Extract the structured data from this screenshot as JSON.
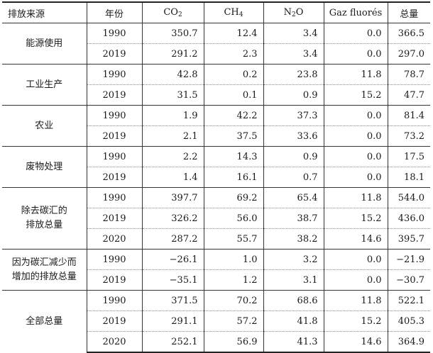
{
  "headers": {
    "source": "排放来源",
    "year": "年份",
    "co2": "CO",
    "co2_sub": "2",
    "ch4": "CH",
    "ch4_sub": "4",
    "n2o_pre": "N",
    "n2o_sub": "2",
    "n2o_post": "O",
    "fgas": "Gaz fluorés",
    "total": "总量"
  },
  "groups": [
    {
      "source": "能源使用",
      "rows": [
        {
          "year": "1990",
          "co2": "350.7",
          "ch4": "12.4",
          "n2o": "3.4",
          "fgas": "0.0",
          "total": "366.5"
        },
        {
          "year": "2019",
          "co2": "291.2",
          "ch4": "2.3",
          "n2o": "3.4",
          "fgas": "0.0",
          "total": "297.0"
        }
      ]
    },
    {
      "source": "工业生产",
      "rows": [
        {
          "year": "1990",
          "co2": "42.8",
          "ch4": "0.2",
          "n2o": "23.8",
          "fgas": "11.8",
          "total": "78.7"
        },
        {
          "year": "2019",
          "co2": "31.5",
          "ch4": "0.1",
          "n2o": "0.9",
          "fgas": "15.2",
          "total": "47.7"
        }
      ]
    },
    {
      "source": "农业",
      "rows": [
        {
          "year": "1990",
          "co2": "1.9",
          "ch4": "42.2",
          "n2o": "37.3",
          "fgas": "0.0",
          "total": "81.4"
        },
        {
          "year": "2019",
          "co2": "2.1",
          "ch4": "37.5",
          "n2o": "33.6",
          "fgas": "0.0",
          "total": "73.2"
        }
      ]
    },
    {
      "source": "废物处理",
      "rows": [
        {
          "year": "1990",
          "co2": "2.2",
          "ch4": "14.3",
          "n2o": "0.9",
          "fgas": "0.0",
          "total": "17.5"
        },
        {
          "year": "2019",
          "co2": "1.4",
          "ch4": "16.1",
          "n2o": "0.7",
          "fgas": "0.0",
          "total": "18.1"
        }
      ]
    },
    {
      "source": "除去碳汇的排放总量",
      "source_lines": [
        "除去碳汇的",
        "排放总量"
      ],
      "rows": [
        {
          "year": "1990",
          "co2": "397.7",
          "ch4": "69.2",
          "n2o": "65.4",
          "fgas": "11.8",
          "total": "544.0"
        },
        {
          "year": "2019",
          "co2": "326.2",
          "ch4": "56.0",
          "n2o": "38.7",
          "fgas": "15.2",
          "total": "436.0"
        },
        {
          "year": "2020",
          "co2": "287.2",
          "ch4": "55.7",
          "n2o": "38.2",
          "fgas": "14.6",
          "total": "395.7"
        }
      ]
    },
    {
      "source": "因为碳汇减少而增加的排放总量",
      "source_lines": [
        "因为碳汇减少而",
        "增加的排放总量"
      ],
      "rows": [
        {
          "year": "1990",
          "co2": "−26.1",
          "ch4": "1.0",
          "n2o": "3.2",
          "fgas": "0.0",
          "total": "−21.9"
        },
        {
          "year": "2019",
          "co2": "−35.1",
          "ch4": "1.2",
          "n2o": "3.1",
          "fgas": "0.0",
          "total": "−30.7"
        }
      ]
    },
    {
      "source": "全部总量",
      "rows": [
        {
          "year": "1990",
          "co2": "371.5",
          "ch4": "70.2",
          "n2o": "68.6",
          "fgas": "11.8",
          "total": "522.1"
        },
        {
          "year": "2019",
          "co2": "291.1",
          "ch4": "57.2",
          "n2o": "41.8",
          "fgas": "15.2",
          "total": "405.3"
        },
        {
          "year": "2020",
          "co2": "252.1",
          "ch4": "56.9",
          "n2o": "41.3",
          "fgas": "14.6",
          "total": "364.9"
        }
      ]
    }
  ]
}
